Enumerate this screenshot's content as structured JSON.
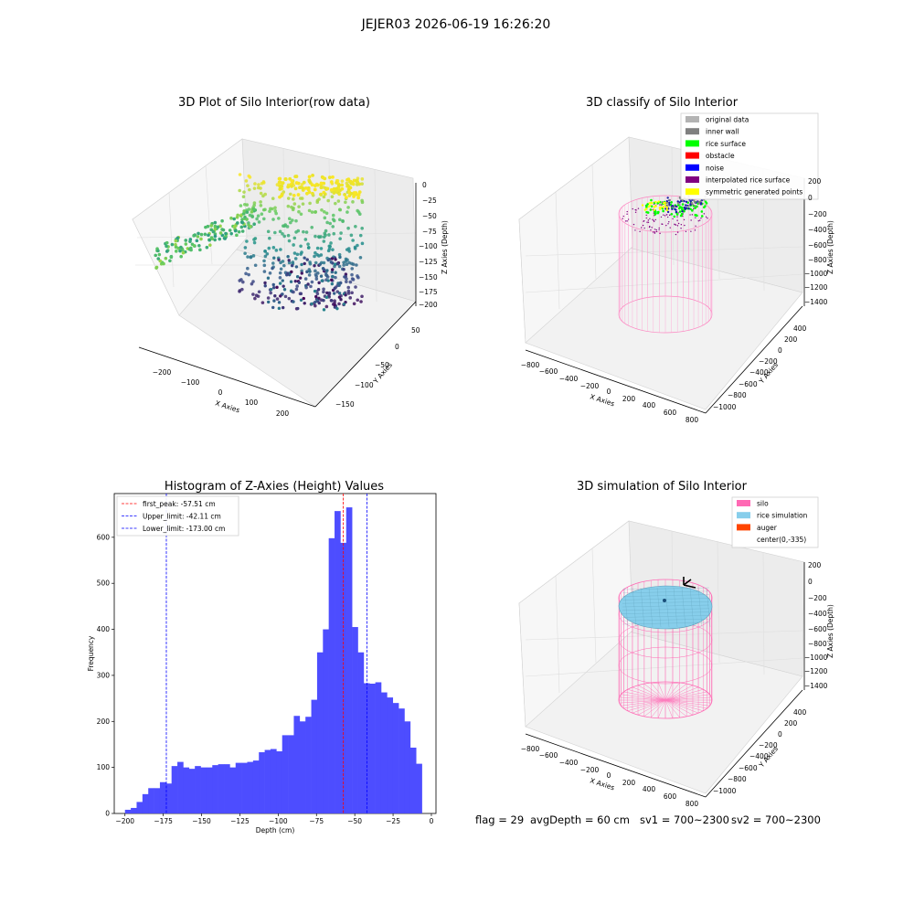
{
  "suptitle": "JEJER03 2026-06-19 16:26:20",
  "panels": {
    "raw": {
      "title": "3D Plot of Silo Interior(row data)",
      "xlabel": "X Axies",
      "ylabel": "Y Axies",
      "zlabel": "Z Axies (Depth)",
      "xticks": [
        "−200",
        "−100",
        "0",
        "100",
        "200"
      ],
      "yticks": [
        "50",
        "0",
        "−50",
        "−100",
        "−150"
      ],
      "zticks": [
        "0",
        "−25",
        "−50",
        "−75",
        "−100",
        "−125",
        "−150",
        "−175",
        "−200"
      ]
    },
    "classify": {
      "title": "3D classify of Silo Interior",
      "xlabel": "X Axies",
      "ylabel": "Y Axies",
      "zlabel": "Z Axies (Depth)",
      "xticks": [
        "−800",
        "−600",
        "−400",
        "−200",
        "0",
        "200",
        "400",
        "600",
        "800"
      ],
      "yticks": [
        "400",
        "200",
        "0",
        "−200",
        "−400",
        "−600",
        "−800",
        "−1000"
      ],
      "zticks": [
        "200",
        "0",
        "−200",
        "−400",
        "−600",
        "−800",
        "−1000",
        "−1200",
        "−1400"
      ],
      "legend": [
        {
          "label": "original data",
          "color": "#b3b3b3"
        },
        {
          "label": "inner wall",
          "color": "#808080"
        },
        {
          "label": "rice surface",
          "color": "#00ff00"
        },
        {
          "label": "obstacle",
          "color": "#ff0000"
        },
        {
          "label": "noise",
          "color": "#0000ff"
        },
        {
          "label": "interpolated rice surface",
          "color": "#800080"
        },
        {
          "label": "symmetric generated points",
          "color": "#ffff00"
        }
      ]
    },
    "simulation": {
      "title": "3D simulation of Silo Interior",
      "xlabel": "X Axies",
      "ylabel": "Y Axies",
      "zlabel": "Z Axies (Depth)",
      "xticks": [
        "−800",
        "−600",
        "−400",
        "−200",
        "0",
        "200",
        "400",
        "600",
        "800"
      ],
      "yticks": [
        "400",
        "200",
        "0",
        "−200",
        "−400",
        "−600",
        "−800",
        "−1000"
      ],
      "zticks": [
        "200",
        "0",
        "−200",
        "−400",
        "−600",
        "−800",
        "−1000",
        "−1200",
        "−1400"
      ],
      "legend": [
        {
          "label": "silo",
          "color": "#ff69b4"
        },
        {
          "label": "rice simulation",
          "color": "#87ceeb"
        },
        {
          "label": "auger",
          "color": "#ff4500"
        },
        {
          "label": "center(0,-335)",
          "color": ""
        }
      ]
    }
  },
  "colors": {
    "hist_bar": "#4d4dff",
    "peak_line": "#ff0000",
    "limit_line": "#0000ff",
    "silo": "#ff69b4",
    "rice": "#87ceeb"
  },
  "chart_data": {
    "type": "bar",
    "title": "Histogram of Z-Axies (Height) Values",
    "xlabel": "Depth (cm)",
    "ylabel": "Frequency",
    "xlim": [
      -207,
      3
    ],
    "ylim": [
      0,
      695
    ],
    "xticks": [
      -200,
      -175,
      -150,
      -125,
      -100,
      -75,
      -50,
      -25,
      0
    ],
    "xtick_labels": [
      "−200",
      "−175",
      "−150",
      "−125",
      "−100",
      "−75",
      "−50",
      "−25",
      "0"
    ],
    "yticks": [
      0,
      100,
      200,
      300,
      400,
      500,
      600
    ],
    "bin_start": -200,
    "bin_width": 3.8,
    "values": [
      8,
      12,
      25,
      42,
      55,
      55,
      68,
      65,
      103,
      112,
      100,
      97,
      103,
      100,
      100,
      105,
      107,
      107,
      100,
      110,
      110,
      112,
      115,
      133,
      138,
      140,
      135,
      170,
      170,
      212,
      200,
      210,
      247,
      350,
      400,
      598,
      657,
      588,
      665,
      405,
      350,
      283,
      282,
      285,
      263,
      252,
      240,
      228,
      200,
      143,
      108
    ],
    "vlines": [
      {
        "label": "first_peak: -57.51 cm",
        "x": -57.51,
        "color": "#ff0000"
      },
      {
        "label": "Upper_limit: -42.11 cm",
        "x": -42.11,
        "color": "#0000ff"
      },
      {
        "label": "Lower_limit: -173.00 cm",
        "x": -173.0,
        "color": "#0000ff"
      }
    ],
    "legend": "top-left",
    "grid": false
  },
  "footer": {
    "flag": "flag = 29",
    "avg_depth": "avgDepth = 60 cm",
    "sv1": "sv1 = 700~2300",
    "sv2": "sv2 = 700~2300"
  }
}
